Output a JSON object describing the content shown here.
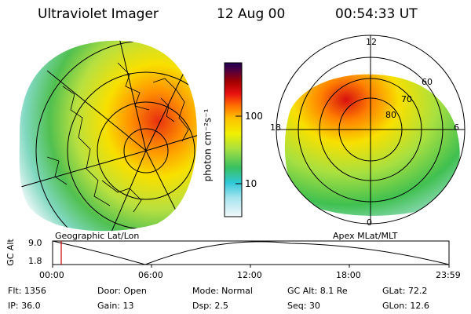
{
  "header": {
    "instrument": "Ultraviolet Imager",
    "date": "12 Aug 00",
    "time": "00:54:33 UT"
  },
  "colorbar": {
    "unit_label": "photon cm⁻²s⁻¹",
    "ticks": [
      "100",
      "10"
    ],
    "scale": "log"
  },
  "panels": {
    "left_label": "Geographic Lat/Lon",
    "right_label": "Apex MLat/MLT",
    "mlt_labels": [
      "12",
      "18",
      "6",
      "0"
    ],
    "mlat_labels": [
      "60",
      "70",
      "80"
    ]
  },
  "altitude_plot": {
    "axis_title": "GC Alt",
    "y_ticks": [
      "9.0",
      "1.8"
    ],
    "x_ticks": [
      "00:00",
      "06:00",
      "12:00",
      "18:00",
      "23:59"
    ]
  },
  "status": {
    "flt": "Flt: 1356",
    "door": "Door: Open",
    "mode": "Mode: Normal",
    "gc_alt": "GC Alt: 8.1 Re",
    "glat": "GLat:  72.2",
    "ip": "IP: 36.0",
    "gain": "Gain: 13",
    "dsp": "Dsp:     2.5",
    "seq": "Seq: 30",
    "glon": "GLon:  12.6"
  },
  "colors": {
    "colorbar_stops": [
      "#e8f4f8",
      "#3cc8d8",
      "#40c040",
      "#c8e030",
      "#f0f000",
      "#ffb000",
      "#ff4000",
      "#c00000",
      "#600040",
      "#200040"
    ],
    "time_marker": "#cc0000"
  }
}
